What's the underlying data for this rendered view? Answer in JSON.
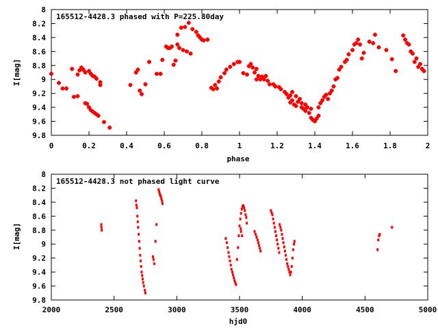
{
  "chart_data": [
    {
      "type": "scatter",
      "title": "165512-4428.3 phased with P=225.80day",
      "xlabel": "phase",
      "ylabel": "I[mag]",
      "xlim": [
        0,
        2
      ],
      "ylim": [
        9.8,
        8
      ],
      "y_inverted": true,
      "xticks": [
        "0",
        "0.2",
        "0.4",
        "0.6",
        "0.8",
        "1",
        "1.2",
        "1.4",
        "1.6",
        "1.8",
        "2"
      ],
      "yticks": [
        "8",
        "8.2",
        "8.4",
        "8.6",
        "8.8",
        "9",
        "9.2",
        "9.4",
        "9.6",
        "9.8"
      ],
      "grid": false,
      "legend": "none",
      "marker_color": "#ff0000",
      "series": [
        {
          "points": [
            [
              0.0,
              8.92
            ],
            [
              0.04,
              9.05
            ],
            [
              0.06,
              9.13
            ],
            [
              0.08,
              9.13
            ],
            [
              0.11,
              8.85
            ],
            [
              0.12,
              9.25
            ],
            [
              0.14,
              8.93
            ],
            [
              0.14,
              9.24
            ],
            [
              0.15,
              8.87
            ],
            [
              0.16,
              8.83
            ],
            [
              0.17,
              8.86
            ],
            [
              0.18,
              8.9
            ],
            [
              0.18,
              9.34
            ],
            [
              0.19,
              9.35
            ],
            [
              0.2,
              8.88
            ],
            [
              0.2,
              9.4
            ],
            [
              0.21,
              8.92
            ],
            [
              0.21,
              9.44
            ],
            [
              0.22,
              8.95
            ],
            [
              0.22,
              9.46
            ],
            [
              0.23,
              8.96
            ],
            [
              0.23,
              9.48
            ],
            [
              0.24,
              8.99
            ],
            [
              0.24,
              9.5
            ],
            [
              0.25,
              9.52
            ],
            [
              0.26,
              9.04
            ],
            [
              0.26,
              9.08
            ],
            [
              0.28,
              9.61
            ],
            [
              0.31,
              9.69
            ],
            [
              0.42,
              9.08
            ],
            [
              0.45,
              8.9
            ],
            [
              0.46,
              8.86
            ],
            [
              0.47,
              9.16
            ],
            [
              0.48,
              9.21
            ],
            [
              0.5,
              9.07
            ],
            [
              0.52,
              8.75
            ],
            [
              0.56,
              8.92
            ],
            [
              0.58,
              8.92
            ],
            [
              0.59,
              8.72
            ],
            [
              0.61,
              8.53
            ],
            [
              0.62,
              8.55
            ],
            [
              0.63,
              8.55
            ],
            [
              0.64,
              8.53
            ],
            [
              0.65,
              8.79
            ],
            [
              0.66,
              8.73
            ],
            [
              0.67,
              8.5
            ],
            [
              0.67,
              8.36
            ],
            [
              0.68,
              8.55
            ],
            [
              0.69,
              8.26
            ],
            [
              0.7,
              8.58
            ],
            [
              0.71,
              8.25
            ],
            [
              0.72,
              8.6
            ],
            [
              0.73,
              8.19
            ],
            [
              0.74,
              8.63
            ],
            [
              0.75,
              8.28
            ],
            [
              0.77,
              8.32
            ],
            [
              0.78,
              8.37
            ],
            [
              0.79,
              8.4
            ],
            [
              0.8,
              8.43
            ],
            [
              0.81,
              8.44
            ],
            [
              0.83,
              8.43
            ],
            [
              0.85,
              9.12
            ],
            [
              0.86,
              9.14
            ],
            [
              0.87,
              9.08
            ],
            [
              0.88,
              9.13
            ],
            [
              0.89,
              9.03
            ],
            [
              0.9,
              8.97
            ],
            [
              0.92,
              8.91
            ],
            [
              0.93,
              8.86
            ],
            [
              0.95,
              8.82
            ],
            [
              0.97,
              8.78
            ],
            [
              0.99,
              8.75
            ],
            [
              1.0,
              8.75
            ],
            [
              1.02,
              8.91
            ],
            [
              1.04,
              8.93
            ],
            [
              1.05,
              8.81
            ],
            [
              1.06,
              8.78
            ],
            [
              1.07,
              8.83
            ],
            [
              1.08,
              8.9
            ],
            [
              1.09,
              8.85
            ],
            [
              1.09,
              9.0
            ],
            [
              1.1,
              8.95
            ],
            [
              1.11,
              9.0
            ],
            [
              1.12,
              8.96
            ],
            [
              1.13,
              9.0
            ],
            [
              1.14,
              8.95
            ],
            [
              1.15,
              9.02
            ],
            [
              1.16,
              9.07
            ],
            [
              1.18,
              9.07
            ],
            [
              1.19,
              9.1
            ],
            [
              1.21,
              9.11
            ],
            [
              1.22,
              9.14
            ],
            [
              1.24,
              9.18
            ],
            [
              1.25,
              9.21
            ],
            [
              1.26,
              9.26
            ],
            [
              1.27,
              9.23
            ],
            [
              1.27,
              9.33
            ],
            [
              1.28,
              9.18
            ],
            [
              1.28,
              9.3
            ],
            [
              1.29,
              9.36
            ],
            [
              1.3,
              9.24
            ],
            [
              1.3,
              9.38
            ],
            [
              1.31,
              9.32
            ],
            [
              1.32,
              9.28
            ],
            [
              1.33,
              9.4
            ],
            [
              1.33,
              9.34
            ],
            [
              1.34,
              9.42
            ],
            [
              1.35,
              9.36
            ],
            [
              1.35,
              9.45
            ],
            [
              1.36,
              9.4
            ],
            [
              1.37,
              9.48
            ],
            [
              1.38,
              9.55
            ],
            [
              1.38,
              9.42
            ],
            [
              1.39,
              9.58
            ],
            [
              1.4,
              9.6
            ],
            [
              1.41,
              9.56
            ],
            [
              1.42,
              9.52
            ],
            [
              1.42,
              9.4
            ],
            [
              1.43,
              9.34
            ],
            [
              1.44,
              9.3
            ],
            [
              1.45,
              9.25
            ],
            [
              1.46,
              9.22
            ],
            [
              1.47,
              9.28
            ],
            [
              1.48,
              9.2
            ],
            [
              1.49,
              9.16
            ],
            [
              1.5,
              9.1
            ],
            [
              1.51,
              9.0
            ],
            [
              1.52,
              8.98
            ],
            [
              1.53,
              8.86
            ],
            [
              1.54,
              8.82
            ],
            [
              1.56,
              8.75
            ],
            [
              1.57,
              8.72
            ],
            [
              1.58,
              8.64
            ],
            [
              1.6,
              8.58
            ],
            [
              1.61,
              8.5
            ],
            [
              1.62,
              8.48
            ],
            [
              1.63,
              8.43
            ],
            [
              1.64,
              8.5
            ],
            [
              1.65,
              8.7
            ],
            [
              1.66,
              8.62
            ],
            [
              1.69,
              8.46
            ],
            [
              1.71,
              8.48
            ],
            [
              1.72,
              8.36
            ],
            [
              1.74,
              8.54
            ],
            [
              1.78,
              8.58
            ],
            [
              1.81,
              8.71
            ],
            [
              1.83,
              8.88
            ],
            [
              1.87,
              8.37
            ],
            [
              1.88,
              8.43
            ],
            [
              1.89,
              8.48
            ],
            [
              1.9,
              8.5
            ],
            [
              1.91,
              8.6
            ],
            [
              1.92,
              8.63
            ],
            [
              1.93,
              8.75
            ],
            [
              1.94,
              8.7
            ],
            [
              1.95,
              8.82
            ],
            [
              1.96,
              8.78
            ],
            [
              1.97,
              8.85
            ],
            [
              1.98,
              8.88
            ]
          ]
        }
      ]
    },
    {
      "type": "scatter",
      "title": "165512-4428.3 not phased light curve",
      "xlabel": "hjd0",
      "ylabel": "I[mag]",
      "xlim": [
        2000,
        5000
      ],
      "ylim": [
        9.8,
        8
      ],
      "y_inverted": true,
      "xticks": [
        "2000",
        "2500",
        "3000",
        "3500",
        "4000",
        "4500",
        "5000"
      ],
      "yticks": [
        "8",
        "8.2",
        "8.4",
        "8.6",
        "8.8",
        "9",
        "9.2",
        "9.4",
        "9.6",
        "9.8"
      ],
      "grid": false,
      "legend": "none",
      "marker_color": "#ff0000",
      "series": [
        {
          "points": [
            [
              2398,
              8.72
            ],
            [
              2400,
              8.76
            ],
            [
              2402,
              8.8
            ],
            [
              2675,
              8.38
            ],
            [
              2678,
              8.44
            ],
            [
              2682,
              8.48
            ],
            [
              2686,
              8.6
            ],
            [
              2689,
              8.68
            ],
            [
              2692,
              8.76
            ],
            [
              2696,
              8.86
            ],
            [
              2700,
              8.96
            ],
            [
              2704,
              9.06
            ],
            [
              2708,
              9.16
            ],
            [
              2712,
              9.24
            ],
            [
              2716,
              9.32
            ],
            [
              2720,
              9.4
            ],
            [
              2724,
              9.45
            ],
            [
              2728,
              9.5
            ],
            [
              2732,
              9.55
            ],
            [
              2738,
              9.6
            ],
            [
              2745,
              9.66
            ],
            [
              2750,
              9.7
            ],
            [
              2810,
              9.18
            ],
            [
              2815,
              9.22
            ],
            [
              2820,
              9.28
            ],
            [
              2830,
              8.96
            ],
            [
              2838,
              8.72
            ],
            [
              2855,
              8.22
            ],
            [
              2860,
              8.25
            ],
            [
              2864,
              8.28
            ],
            [
              2868,
              8.3
            ],
            [
              2873,
              8.32
            ],
            [
              2877,
              8.35
            ],
            [
              2882,
              8.38
            ],
            [
              2886,
              8.42
            ],
            [
              3390,
              8.92
            ],
            [
              3398,
              8.98
            ],
            [
              3405,
              9.05
            ],
            [
              3412,
              9.12
            ],
            [
              3418,
              9.18
            ],
            [
              3424,
              9.24
            ],
            [
              3430,
              9.3
            ],
            [
              3436,
              9.36
            ],
            [
              3442,
              9.4
            ],
            [
              3448,
              9.44
            ],
            [
              3454,
              9.48
            ],
            [
              3460,
              9.52
            ],
            [
              3466,
              9.55
            ],
            [
              3472,
              9.58
            ],
            [
              3480,
              9.22
            ],
            [
              3488,
              9.05
            ],
            [
              3494,
              8.88
            ],
            [
              3500,
              8.74
            ],
            [
              3506,
              8.64
            ],
            [
              3512,
              8.56
            ],
            [
              3518,
              8.5
            ],
            [
              3524,
              8.46
            ],
            [
              3530,
              8.45
            ],
            [
              3536,
              8.48
            ],
            [
              3542,
              8.52
            ],
            [
              3548,
              8.58
            ],
            [
              3554,
              8.62
            ],
            [
              3558,
              8.7
            ],
            [
              3510,
              8.78
            ],
            [
              3512,
              8.82
            ],
            [
              3520,
              8.88
            ],
            [
              3620,
              8.82
            ],
            [
              3628,
              8.86
            ],
            [
              3636,
              8.9
            ],
            [
              3644,
              8.94
            ],
            [
              3650,
              8.98
            ],
            [
              3656,
              9.02
            ],
            [
              3662,
              9.06
            ],
            [
              3668,
              9.1
            ],
            [
              3750,
              8.52
            ],
            [
              3756,
              8.55
            ],
            [
              3762,
              8.58
            ],
            [
              3768,
              8.64
            ],
            [
              3774,
              8.7
            ],
            [
              3780,
              8.76
            ],
            [
              3786,
              8.82
            ],
            [
              3792,
              8.88
            ],
            [
              3798,
              8.94
            ],
            [
              3804,
              9.0
            ],
            [
              3810,
              9.06
            ],
            [
              3816,
              9.12
            ],
            [
              3820,
              8.72
            ],
            [
              3826,
              8.76
            ],
            [
              3832,
              8.8
            ],
            [
              3838,
              8.86
            ],
            [
              3844,
              8.92
            ],
            [
              3850,
              8.98
            ],
            [
              3856,
              9.04
            ],
            [
              3862,
              9.1
            ],
            [
              3868,
              9.16
            ],
            [
              3874,
              9.22
            ],
            [
              3880,
              9.28
            ],
            [
              3886,
              9.32
            ],
            [
              3892,
              9.36
            ],
            [
              3898,
              9.4
            ],
            [
              3904,
              9.44
            ],
            [
              3910,
              9.4
            ],
            [
              3916,
              9.32
            ],
            [
              3922,
              9.2
            ],
            [
              3928,
              9.08
            ],
            [
              3934,
              9.0
            ],
            [
              3938,
              8.96
            ],
            [
              4600,
              9.08
            ],
            [
              4606,
              8.94
            ],
            [
              4612,
              8.88
            ],
            [
              4618,
              8.86
            ],
            [
              4715,
              8.76
            ]
          ]
        }
      ]
    }
  ]
}
